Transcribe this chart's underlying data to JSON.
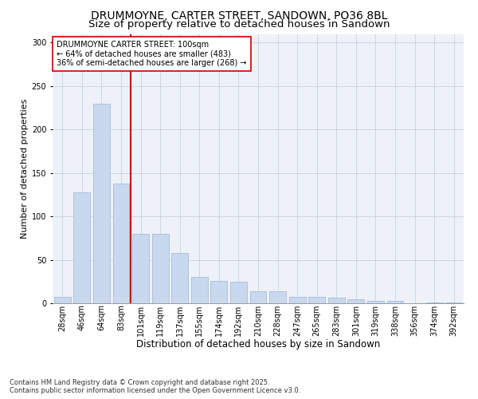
{
  "title": "DRUMMOYNE, CARTER STREET, SANDOWN, PO36 8BL",
  "subtitle": "Size of property relative to detached houses in Sandown",
  "xlabel": "Distribution of detached houses by size in Sandown",
  "ylabel": "Number of detached properties",
  "categories": [
    "28sqm",
    "46sqm",
    "64sqm",
    "83sqm",
    "101sqm",
    "119sqm",
    "137sqm",
    "155sqm",
    "174sqm",
    "192sqm",
    "210sqm",
    "228sqm",
    "247sqm",
    "265sqm",
    "283sqm",
    "301sqm",
    "319sqm",
    "338sqm",
    "356sqm",
    "374sqm",
    "392sqm"
  ],
  "values": [
    7,
    128,
    230,
    138,
    80,
    80,
    58,
    30,
    26,
    25,
    14,
    14,
    7,
    7,
    6,
    5,
    3,
    3,
    0,
    1,
    1
  ],
  "bar_color": "#c8d8ee",
  "bar_edge_color": "#9ab4d4",
  "grid_color": "#c8d0dc",
  "bg_color": "#eef2f8",
  "vline_x_index": 4,
  "vline_color": "#cc0000",
  "annotation_text": "DRUMMOYNE CARTER STREET: 100sqm\n← 64% of detached houses are smaller (483)\n36% of semi-detached houses are larger (268) →",
  "annotation_box_color": "#ffffff",
  "annotation_box_edge": "#cc0000",
  "ylim": [
    0,
    310
  ],
  "yticks": [
    0,
    50,
    100,
    150,
    200,
    250,
    300
  ],
  "footer": "Contains HM Land Registry data © Crown copyright and database right 2025.\nContains public sector information licensed under the Open Government Licence v3.0.",
  "title_fontsize": 10,
  "subtitle_fontsize": 9.5,
  "xlabel_fontsize": 8.5,
  "ylabel_fontsize": 8,
  "tick_fontsize": 7,
  "footer_fontsize": 6,
  "ann_fontsize": 7
}
